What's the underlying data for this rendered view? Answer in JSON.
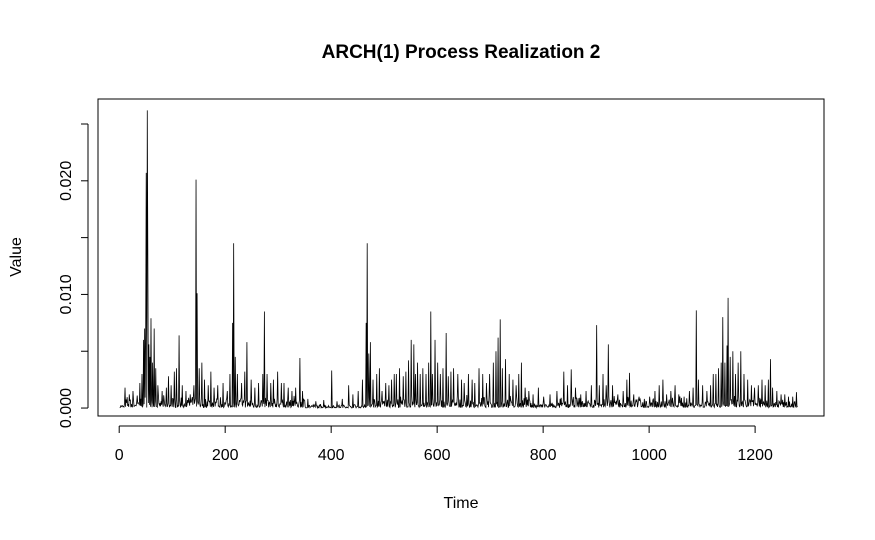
{
  "chart_data": {
    "type": "line",
    "title": "ARCH(1) Process Realization 2",
    "xlabel": "Time",
    "ylabel": "Value",
    "xlim": [
      -40,
      1330
    ],
    "ylim": [
      -0.0007,
      0.0272
    ],
    "x_ticks": [
      0,
      200,
      400,
      600,
      800,
      1000,
      1200
    ],
    "x_tick_labels": [
      "0",
      "200",
      "400",
      "600",
      "800",
      "1000",
      "1200"
    ],
    "y_ticks": [
      0.0,
      0.005,
      0.01,
      0.015,
      0.02,
      0.025
    ],
    "y_tick_labels": [
      "0.000",
      "",
      "0.010",
      "",
      "0.020",
      ""
    ],
    "grid": false,
    "n_points": 1280,
    "color": "#000000",
    "spikes": [
      [
        10,
        0.0018
      ],
      [
        18,
        0.0012
      ],
      [
        25,
        0.0015
      ],
      [
        33,
        0.0011
      ],
      [
        38,
        0.0022
      ],
      [
        42,
        0.003
      ],
      [
        45,
        0.006
      ],
      [
        47,
        0.007
      ],
      [
        49,
        0.0068
      ],
      [
        50,
        0.0207
      ],
      [
        52,
        0.0262
      ],
      [
        53,
        0.014
      ],
      [
        55,
        0.0056
      ],
      [
        57,
        0.0045
      ],
      [
        59,
        0.0079
      ],
      [
        62,
        0.004
      ],
      [
        65,
        0.007
      ],
      [
        68,
        0.0035
      ],
      [
        72,
        0.002
      ],
      [
        80,
        0.0015
      ],
      [
        88,
        0.0018
      ],
      [
        92,
        0.0028
      ],
      [
        97,
        0.002
      ],
      [
        103,
        0.0032
      ],
      [
        107,
        0.0035
      ],
      [
        112,
        0.0064
      ],
      [
        118,
        0.002
      ],
      [
        125,
        0.0015
      ],
      [
        133,
        0.0012
      ],
      [
        140,
        0.002
      ],
      [
        144,
        0.0201
      ],
      [
        146,
        0.0101
      ],
      [
        150,
        0.0035
      ],
      [
        155,
        0.004
      ],
      [
        160,
        0.0025
      ],
      [
        167,
        0.002
      ],
      [
        172,
        0.0032
      ],
      [
        178,
        0.0018
      ],
      [
        185,
        0.002
      ],
      [
        195,
        0.0022
      ],
      [
        203,
        0.0015
      ],
      [
        208,
        0.003
      ],
      [
        213,
        0.0075
      ],
      [
        215,
        0.0145
      ],
      [
        218,
        0.0045
      ],
      [
        222,
        0.003
      ],
      [
        230,
        0.0022
      ],
      [
        236,
        0.0032
      ],
      [
        240,
        0.0058
      ],
      [
        248,
        0.0025
      ],
      [
        255,
        0.0018
      ],
      [
        262,
        0.0022
      ],
      [
        270,
        0.003
      ],
      [
        273,
        0.0085
      ],
      [
        278,
        0.003
      ],
      [
        285,
        0.0022
      ],
      [
        290,
        0.0025
      ],
      [
        298,
        0.0032
      ],
      [
        305,
        0.0022
      ],
      [
        310,
        0.0022
      ],
      [
        318,
        0.0018
      ],
      [
        325,
        0.0015
      ],
      [
        332,
        0.0018
      ],
      [
        340,
        0.0044
      ],
      [
        345,
        0.0015
      ],
      [
        355,
        0.0008
      ],
      [
        370,
        0.0006
      ],
      [
        385,
        0.0007
      ],
      [
        400,
        0.0033
      ],
      [
        410,
        0.0006
      ],
      [
        420,
        0.0008
      ],
      [
        432,
        0.002
      ],
      [
        440,
        0.0012
      ],
      [
        450,
        0.0015
      ],
      [
        458,
        0.0025
      ],
      [
        465,
        0.0075
      ],
      [
        467,
        0.0145
      ],
      [
        470,
        0.0048
      ],
      [
        473,
        0.0058
      ],
      [
        478,
        0.0025
      ],
      [
        485,
        0.003
      ],
      [
        490,
        0.0035
      ],
      [
        495,
        0.0015
      ],
      [
        502,
        0.0022
      ],
      [
        508,
        0.002
      ],
      [
        513,
        0.0025
      ],
      [
        518,
        0.003
      ],
      [
        522,
        0.003
      ],
      [
        528,
        0.0035
      ],
      [
        535,
        0.0028
      ],
      [
        540,
        0.0032
      ],
      [
        545,
        0.0042
      ],
      [
        550,
        0.006
      ],
      [
        555,
        0.0056
      ],
      [
        558,
        0.003
      ],
      [
        562,
        0.004
      ],
      [
        567,
        0.003
      ],
      [
        572,
        0.0035
      ],
      [
        578,
        0.003
      ],
      [
        583,
        0.004
      ],
      [
        587,
        0.0085
      ],
      [
        590,
        0.003
      ],
      [
        595,
        0.006
      ],
      [
        600,
        0.004
      ],
      [
        605,
        0.003
      ],
      [
        610,
        0.0035
      ],
      [
        616,
        0.0066
      ],
      [
        620,
        0.0028
      ],
      [
        625,
        0.0032
      ],
      [
        630,
        0.0035
      ],
      [
        638,
        0.003
      ],
      [
        645,
        0.0025
      ],
      [
        650,
        0.0022
      ],
      [
        658,
        0.003
      ],
      [
        665,
        0.0025
      ],
      [
        670,
        0.0022
      ],
      [
        678,
        0.0035
      ],
      [
        685,
        0.003
      ],
      [
        692,
        0.0022
      ],
      [
        698,
        0.003
      ],
      [
        705,
        0.004
      ],
      [
        710,
        0.005
      ],
      [
        714,
        0.0062
      ],
      [
        718,
        0.0078
      ],
      [
        722,
        0.0035
      ],
      [
        728,
        0.0043
      ],
      [
        735,
        0.003
      ],
      [
        742,
        0.0025
      ],
      [
        748,
        0.002
      ],
      [
        753,
        0.003
      ],
      [
        758,
        0.004
      ],
      [
        765,
        0.0018
      ],
      [
        772,
        0.0015
      ],
      [
        780,
        0.0012
      ],
      [
        790,
        0.0018
      ],
      [
        800,
        0.001
      ],
      [
        812,
        0.0012
      ],
      [
        825,
        0.0015
      ],
      [
        838,
        0.0032
      ],
      [
        845,
        0.002
      ],
      [
        852,
        0.0034
      ],
      [
        860,
        0.0018
      ],
      [
        870,
        0.0012
      ],
      [
        880,
        0.0015
      ],
      [
        890,
        0.002
      ],
      [
        900,
        0.0073
      ],
      [
        905,
        0.002
      ],
      [
        912,
        0.003
      ],
      [
        918,
        0.002
      ],
      [
        922,
        0.0056
      ],
      [
        930,
        0.002
      ],
      [
        940,
        0.0012
      ],
      [
        950,
        0.0015
      ],
      [
        957,
        0.0025
      ],
      [
        962,
        0.0031
      ],
      [
        970,
        0.0012
      ],
      [
        980,
        0.001
      ],
      [
        990,
        0.0008
      ],
      [
        1000,
        0.001
      ],
      [
        1010,
        0.0015
      ],
      [
        1018,
        0.002
      ],
      [
        1025,
        0.0025
      ],
      [
        1032,
        0.0012
      ],
      [
        1040,
        0.0015
      ],
      [
        1048,
        0.002
      ],
      [
        1055,
        0.0012
      ],
      [
        1065,
        0.001
      ],
      [
        1075,
        0.0015
      ],
      [
        1082,
        0.0018
      ],
      [
        1088,
        0.0086
      ],
      [
        1092,
        0.0025
      ],
      [
        1100,
        0.002
      ],
      [
        1108,
        0.0015
      ],
      [
        1115,
        0.002
      ],
      [
        1120,
        0.003
      ],
      [
        1125,
        0.003
      ],
      [
        1130,
        0.0035
      ],
      [
        1135,
        0.004
      ],
      [
        1138,
        0.008
      ],
      [
        1142,
        0.004
      ],
      [
        1146,
        0.0055
      ],
      [
        1148,
        0.0097
      ],
      [
        1152,
        0.0045
      ],
      [
        1157,
        0.005
      ],
      [
        1162,
        0.003
      ],
      [
        1167,
        0.004
      ],
      [
        1172,
        0.005
      ],
      [
        1178,
        0.003
      ],
      [
        1185,
        0.0025
      ],
      [
        1192,
        0.002
      ],
      [
        1198,
        0.0018
      ],
      [
        1205,
        0.002
      ],
      [
        1212,
        0.0025
      ],
      [
        1218,
        0.002
      ],
      [
        1224,
        0.0025
      ],
      [
        1228,
        0.0043
      ],
      [
        1232,
        0.0018
      ],
      [
        1240,
        0.0015
      ],
      [
        1248,
        0.0012
      ],
      [
        1255,
        0.0012
      ],
      [
        1262,
        0.001
      ],
      [
        1270,
        0.001
      ],
      [
        1277,
        0.0014
      ]
    ]
  }
}
